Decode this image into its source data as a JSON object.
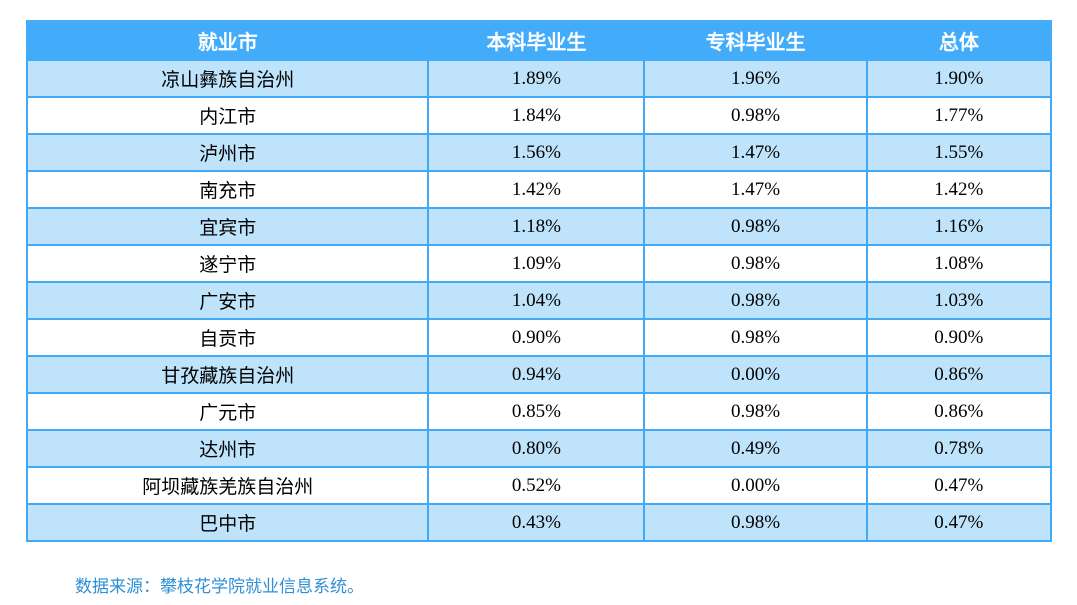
{
  "table": {
    "headers": [
      "就业市",
      "本科毕业生",
      "专科毕业生",
      "总体"
    ],
    "rows": [
      {
        "city": "凉山彝族自治州",
        "undergrad": "1.89%",
        "college": "1.96%",
        "overall": "1.90%"
      },
      {
        "city": "内江市",
        "undergrad": "1.84%",
        "college": "0.98%",
        "overall": "1.77%"
      },
      {
        "city": "泸州市",
        "undergrad": "1.56%",
        "college": "1.47%",
        "overall": "1.55%"
      },
      {
        "city": "南充市",
        "undergrad": "1.42%",
        "college": "1.47%",
        "overall": "1.42%"
      },
      {
        "city": "宜宾市",
        "undergrad": "1.18%",
        "college": "0.98%",
        "overall": "1.16%"
      },
      {
        "city": "遂宁市",
        "undergrad": "1.09%",
        "college": "0.98%",
        "overall": "1.08%"
      },
      {
        "city": "广安市",
        "undergrad": "1.04%",
        "college": "0.98%",
        "overall": "1.03%"
      },
      {
        "city": "自贡市",
        "undergrad": "0.90%",
        "college": "0.98%",
        "overall": "0.90%"
      },
      {
        "city": "甘孜藏族自治州",
        "undergrad": "0.94%",
        "college": "0.00%",
        "overall": "0.86%"
      },
      {
        "city": "广元市",
        "undergrad": "0.85%",
        "college": "0.98%",
        "overall": "0.86%"
      },
      {
        "city": "达州市",
        "undergrad": "0.80%",
        "college": "0.49%",
        "overall": "0.78%"
      },
      {
        "city": "阿坝藏族羌族自治州",
        "undergrad": "0.52%",
        "college": "0.00%",
        "overall": "0.47%"
      },
      {
        "city": "巴中市",
        "undergrad": "0.43%",
        "college": "0.98%",
        "overall": "0.47%"
      }
    ]
  },
  "footer": {
    "source_note": "数据来源：攀枝花学院就业信息系统。"
  },
  "colors": {
    "header_bg": "#42abfa",
    "border": "#42a9f6",
    "row_alt_bg": "#bee3fa",
    "row_bg": "#ffffff",
    "header_text": "#ffffff",
    "cell_text": "#000000",
    "source_text": "#2e8fd6"
  }
}
